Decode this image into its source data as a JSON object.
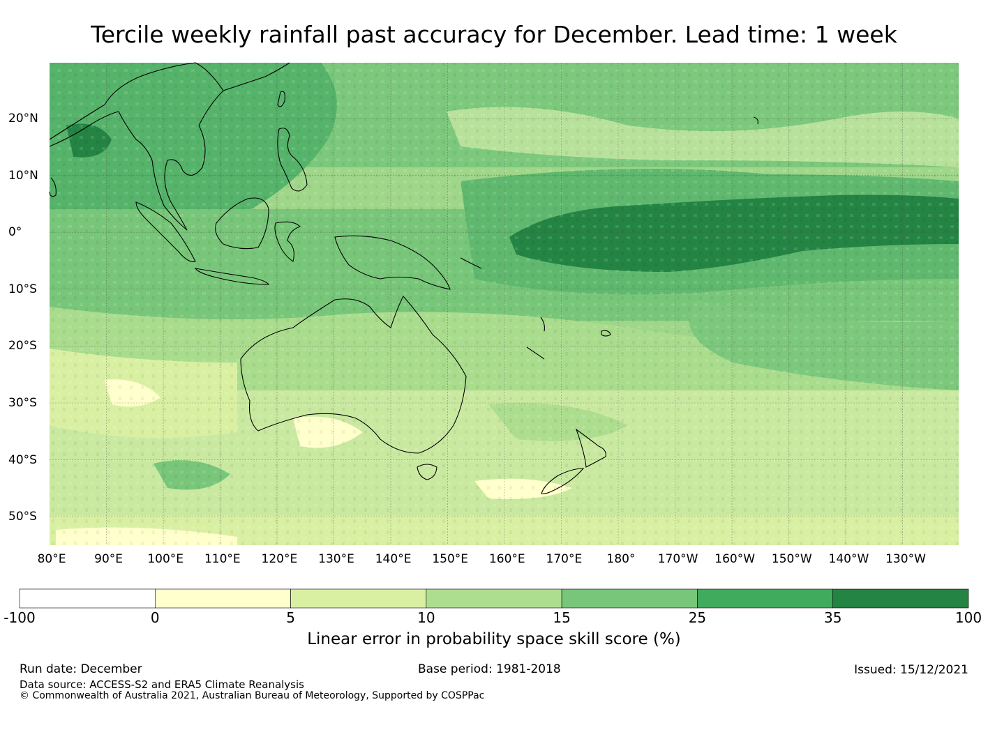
{
  "title": "Tercile weekly rainfall past accuracy for December. Lead time: 1 week",
  "map": {
    "longitude_labels": [
      "80°E",
      "90°E",
      "100°E",
      "110°E",
      "120°E",
      "130°E",
      "140°E",
      "150°E",
      "160°E",
      "170°E",
      "180°",
      "170°W",
      "160°W",
      "150°W",
      "140°W",
      "130°W"
    ],
    "latitude_labels": [
      "20°N",
      "10°N",
      "0°",
      "10°S",
      "20°S",
      "30°S",
      "40°S",
      "50°S"
    ],
    "colors": {
      "ocean_base": "#a8dc8e",
      "coastline": "#000000",
      "gridline": "#555555"
    }
  },
  "colorbar": {
    "ticks": [
      "-100",
      "0",
      "5",
      "10",
      "15",
      "25",
      "35",
      "100"
    ],
    "colors": [
      "#ffffff",
      "#ffffcc",
      "#d9f0a3",
      "#addd8e",
      "#78c679",
      "#41ab5d",
      "#238443"
    ],
    "label": "Linear error in probability space skill score (%)"
  },
  "footer": {
    "run_date": "Run date: December",
    "base_period": "Base period: 1981-2018",
    "issued": "Issued: 15/12/2021",
    "data_source": "Data source: ACCESS-S2 and ERA5 Climate Reanalysis",
    "copyright": "© Commonwealth of Australia 2021, Australian Bureau of Meteorology, Supported by COSPPac"
  }
}
